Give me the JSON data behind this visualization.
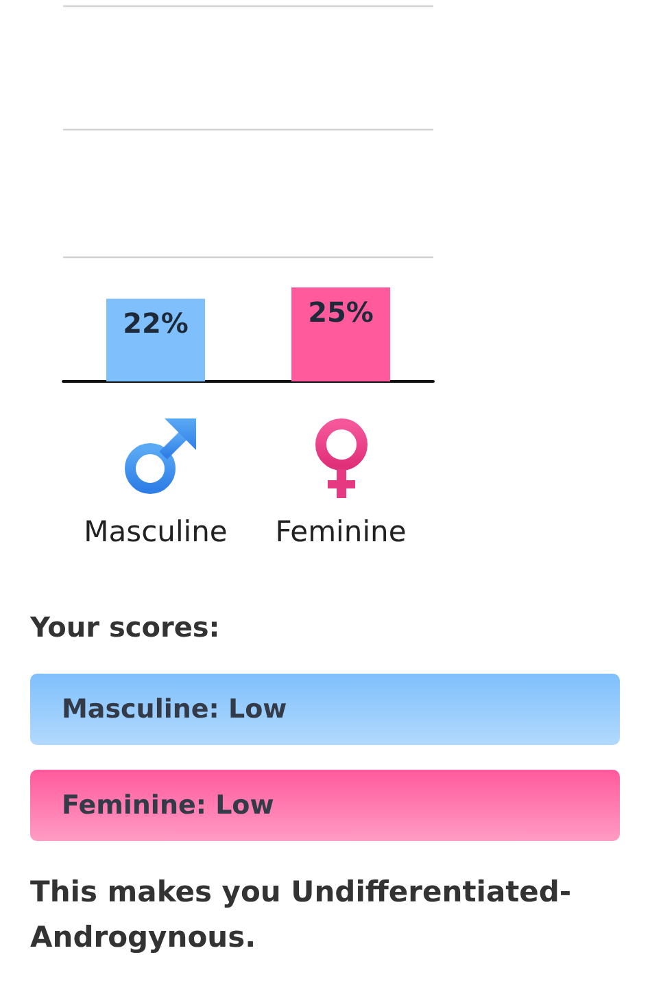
{
  "chart_data": {
    "type": "bar",
    "categories": [
      "Masculine",
      "Feminine"
    ],
    "values": [
      22,
      25
    ],
    "colors": [
      "#7fc0fc",
      "#ff5a9c"
    ],
    "value_labels": [
      "22%",
      "25%"
    ],
    "ylim": [
      0,
      100
    ],
    "yticks": [
      {
        "value": 33,
        "label": null
      },
      {
        "value": 67,
        "label": null
      },
      {
        "value": 100,
        "label": null
      }
    ],
    "grid": "y",
    "tick_labels": "x",
    "annotations": [
      "Your scores:",
      "Masculine: Low",
      "Feminine: Low",
      "This makes you Undifferentiated-Androgynous."
    ]
  }
}
